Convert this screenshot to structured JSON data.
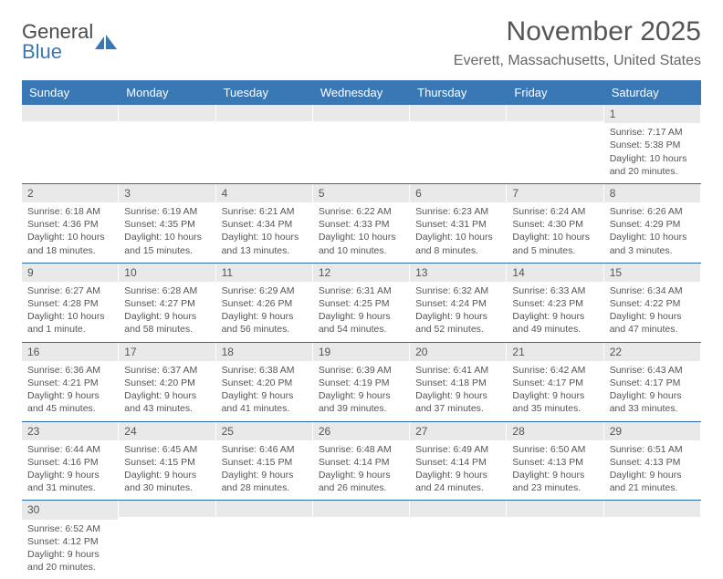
{
  "logo": {
    "text1": "General",
    "text2": "Blue",
    "shape_color": "#3a78b5"
  },
  "title": "November 2025",
  "location": "Everett, Massachusetts, United States",
  "colors": {
    "header_bg": "#3a78b5",
    "header_text": "#ffffff",
    "daynum_bg": "#e9e9e9",
    "border": "#2f6aa8",
    "body_text": "#555555"
  },
  "typography": {
    "title_fontsize": 30,
    "location_fontsize": 16,
    "weekday_fontsize": 13,
    "cell_fontsize": 10.5
  },
  "weekdays": [
    "Sunday",
    "Monday",
    "Tuesday",
    "Wednesday",
    "Thursday",
    "Friday",
    "Saturday"
  ],
  "weeks": [
    [
      null,
      null,
      null,
      null,
      null,
      null,
      {
        "day": "1",
        "sunrise": "Sunrise: 7:17 AM",
        "sunset": "Sunset: 5:38 PM",
        "daylight": "Daylight: 10 hours and 20 minutes."
      }
    ],
    [
      {
        "day": "2",
        "sunrise": "Sunrise: 6:18 AM",
        "sunset": "Sunset: 4:36 PM",
        "daylight": "Daylight: 10 hours and 18 minutes."
      },
      {
        "day": "3",
        "sunrise": "Sunrise: 6:19 AM",
        "sunset": "Sunset: 4:35 PM",
        "daylight": "Daylight: 10 hours and 15 minutes."
      },
      {
        "day": "4",
        "sunrise": "Sunrise: 6:21 AM",
        "sunset": "Sunset: 4:34 PM",
        "daylight": "Daylight: 10 hours and 13 minutes."
      },
      {
        "day": "5",
        "sunrise": "Sunrise: 6:22 AM",
        "sunset": "Sunset: 4:33 PM",
        "daylight": "Daylight: 10 hours and 10 minutes."
      },
      {
        "day": "6",
        "sunrise": "Sunrise: 6:23 AM",
        "sunset": "Sunset: 4:31 PM",
        "daylight": "Daylight: 10 hours and 8 minutes."
      },
      {
        "day": "7",
        "sunrise": "Sunrise: 6:24 AM",
        "sunset": "Sunset: 4:30 PM",
        "daylight": "Daylight: 10 hours and 5 minutes."
      },
      {
        "day": "8",
        "sunrise": "Sunrise: 6:26 AM",
        "sunset": "Sunset: 4:29 PM",
        "daylight": "Daylight: 10 hours and 3 minutes."
      }
    ],
    [
      {
        "day": "9",
        "sunrise": "Sunrise: 6:27 AM",
        "sunset": "Sunset: 4:28 PM",
        "daylight": "Daylight: 10 hours and 1 minute."
      },
      {
        "day": "10",
        "sunrise": "Sunrise: 6:28 AM",
        "sunset": "Sunset: 4:27 PM",
        "daylight": "Daylight: 9 hours and 58 minutes."
      },
      {
        "day": "11",
        "sunrise": "Sunrise: 6:29 AM",
        "sunset": "Sunset: 4:26 PM",
        "daylight": "Daylight: 9 hours and 56 minutes."
      },
      {
        "day": "12",
        "sunrise": "Sunrise: 6:31 AM",
        "sunset": "Sunset: 4:25 PM",
        "daylight": "Daylight: 9 hours and 54 minutes."
      },
      {
        "day": "13",
        "sunrise": "Sunrise: 6:32 AM",
        "sunset": "Sunset: 4:24 PM",
        "daylight": "Daylight: 9 hours and 52 minutes."
      },
      {
        "day": "14",
        "sunrise": "Sunrise: 6:33 AM",
        "sunset": "Sunset: 4:23 PM",
        "daylight": "Daylight: 9 hours and 49 minutes."
      },
      {
        "day": "15",
        "sunrise": "Sunrise: 6:34 AM",
        "sunset": "Sunset: 4:22 PM",
        "daylight": "Daylight: 9 hours and 47 minutes."
      }
    ],
    [
      {
        "day": "16",
        "sunrise": "Sunrise: 6:36 AM",
        "sunset": "Sunset: 4:21 PM",
        "daylight": "Daylight: 9 hours and 45 minutes."
      },
      {
        "day": "17",
        "sunrise": "Sunrise: 6:37 AM",
        "sunset": "Sunset: 4:20 PM",
        "daylight": "Daylight: 9 hours and 43 minutes."
      },
      {
        "day": "18",
        "sunrise": "Sunrise: 6:38 AM",
        "sunset": "Sunset: 4:20 PM",
        "daylight": "Daylight: 9 hours and 41 minutes."
      },
      {
        "day": "19",
        "sunrise": "Sunrise: 6:39 AM",
        "sunset": "Sunset: 4:19 PM",
        "daylight": "Daylight: 9 hours and 39 minutes."
      },
      {
        "day": "20",
        "sunrise": "Sunrise: 6:41 AM",
        "sunset": "Sunset: 4:18 PM",
        "daylight": "Daylight: 9 hours and 37 minutes."
      },
      {
        "day": "21",
        "sunrise": "Sunrise: 6:42 AM",
        "sunset": "Sunset: 4:17 PM",
        "daylight": "Daylight: 9 hours and 35 minutes."
      },
      {
        "day": "22",
        "sunrise": "Sunrise: 6:43 AM",
        "sunset": "Sunset: 4:17 PM",
        "daylight": "Daylight: 9 hours and 33 minutes."
      }
    ],
    [
      {
        "day": "23",
        "sunrise": "Sunrise: 6:44 AM",
        "sunset": "Sunset: 4:16 PM",
        "daylight": "Daylight: 9 hours and 31 minutes."
      },
      {
        "day": "24",
        "sunrise": "Sunrise: 6:45 AM",
        "sunset": "Sunset: 4:15 PM",
        "daylight": "Daylight: 9 hours and 30 minutes."
      },
      {
        "day": "25",
        "sunrise": "Sunrise: 6:46 AM",
        "sunset": "Sunset: 4:15 PM",
        "daylight": "Daylight: 9 hours and 28 minutes."
      },
      {
        "day": "26",
        "sunrise": "Sunrise: 6:48 AM",
        "sunset": "Sunset: 4:14 PM",
        "daylight": "Daylight: 9 hours and 26 minutes."
      },
      {
        "day": "27",
        "sunrise": "Sunrise: 6:49 AM",
        "sunset": "Sunset: 4:14 PM",
        "daylight": "Daylight: 9 hours and 24 minutes."
      },
      {
        "day": "28",
        "sunrise": "Sunrise: 6:50 AM",
        "sunset": "Sunset: 4:13 PM",
        "daylight": "Daylight: 9 hours and 23 minutes."
      },
      {
        "day": "29",
        "sunrise": "Sunrise: 6:51 AM",
        "sunset": "Sunset: 4:13 PM",
        "daylight": "Daylight: 9 hours and 21 minutes."
      }
    ],
    [
      {
        "day": "30",
        "sunrise": "Sunrise: 6:52 AM",
        "sunset": "Sunset: 4:12 PM",
        "daylight": "Daylight: 9 hours and 20 minutes."
      },
      null,
      null,
      null,
      null,
      null,
      null
    ]
  ]
}
